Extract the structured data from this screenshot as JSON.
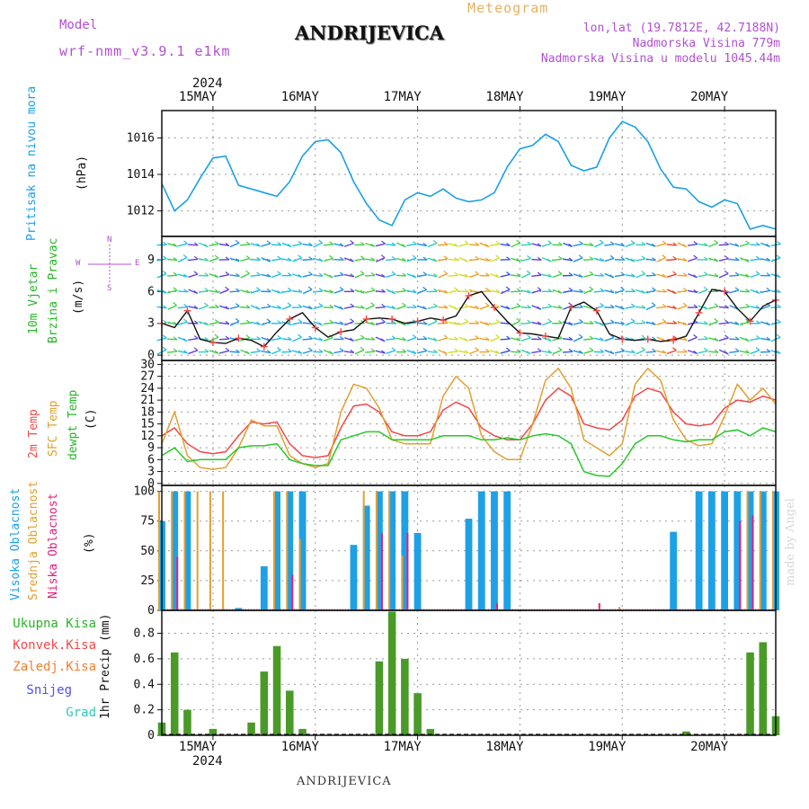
{
  "header": {
    "model_label": "Model",
    "model_name": "wrf-nmm_v3.9.1 e1km",
    "title": "ANDRIJEVICA",
    "meteogram": "Meteogram",
    "lonlat": "lon,lat (19.7812E, 42.7188N)",
    "elevation": "Nadmorska Visina 779m",
    "model_elevation": "Nadmorska Visina u modelu 1045.44m",
    "footer_title": "ANDRIJEVICA",
    "watermark": "made by Angel"
  },
  "colors": {
    "pressure": "#1aa0e6",
    "temp2m": "#f04848",
    "sfc": "#e0a030",
    "dewpoint": "#28c828",
    "high_cloud": "#1ea0e6",
    "mid_cloud": "#e0a030",
    "low_cloud": "#e02080",
    "precip": "#4a9a28",
    "model_text": "#b050d0",
    "meteogram_text": "#e8b060"
  },
  "x_axis": {
    "year": "2024",
    "days": [
      "15MAY",
      "16MAY",
      "17MAY",
      "18MAY",
      "19MAY",
      "20MAY"
    ]
  },
  "panels": {
    "pressure": {
      "label": "Pritisak na nivou mora",
      "unit": "(hPa)"
    },
    "wind": {
      "label1": "10m Vjetar",
      "label2": "Brzina i Pravac",
      "unit": "(m/s)",
      "compass_n": "N",
      "compass_e": "E",
      "compass_w": "W",
      "compass_s": "S"
    },
    "temp": {
      "label1": "2m Temp",
      "label2": "SFC Temp",
      "label3": "dewpt Temp",
      "unit": "(C)"
    },
    "cloud": {
      "label1": "Visoka Oblacnost",
      "label2": "Srednja Oblacnost",
      "label3": "Niska Oblacnost",
      "unit": "(%)"
    },
    "precip": {
      "label": "1hr Precip (mm)",
      "legend": [
        "Ukupna Kisa",
        "Konvek.Kisa",
        "Zaledj.Kisa",
        "Snijeg",
        "Grad"
      ],
      "legend_colors": [
        "#28b428",
        "#f04848",
        "#f08030",
        "#5050f0",
        "#30c8b8"
      ]
    }
  },
  "chart_data": [
    {
      "type": "line",
      "title": "Pritisak na nivou mora",
      "ylabel": "(hPa)",
      "ylim": [
        1010.6,
        1017.5
      ],
      "yticks": [
        1012,
        1014,
        1016
      ],
      "x_start_day": 14.5,
      "x_end_day": 20.5,
      "step_hours": 3,
      "series": [
        {
          "name": "Pritisak na nivou mora",
          "values": [
            1013.5,
            1012.0,
            1012.6,
            1013.8,
            1014.9,
            1015.0,
            1013.4,
            1013.2,
            1013.0,
            1012.8,
            1013.6,
            1015.0,
            1015.8,
            1015.9,
            1015.2,
            1013.6,
            1012.4,
            1011.5,
            1011.2,
            1012.6,
            1013.0,
            1012.8,
            1013.2,
            1012.7,
            1012.5,
            1012.6,
            1013.0,
            1014.4,
            1015.4,
            1015.6,
            1016.2,
            1015.8,
            1014.5,
            1014.2,
            1014.4,
            1016.0,
            1016.9,
            1016.6,
            1015.8,
            1014.3,
            1013.3,
            1013.2,
            1012.5,
            1012.2,
            1012.6,
            1012.4,
            1011.0,
            1011.2,
            1011.0
          ]
        }
      ]
    },
    {
      "type": "line",
      "title": "10m Vjetar Brzina i Pravac",
      "ylabel": "(m/s)",
      "ylim": [
        -0.5,
        11.2
      ],
      "yticks": [
        0,
        3,
        6,
        9
      ],
      "x_start_day": 14.5,
      "x_end_day": 20.5,
      "step_hours": 3,
      "series": [
        {
          "name": "10m Vjetar",
          "values": [
            3.0,
            2.6,
            4.2,
            1.5,
            1.2,
            1.1,
            1.6,
            1.4,
            0.8,
            2.2,
            3.4,
            4.0,
            2.6,
            1.7,
            2.2,
            2.4,
            3.4,
            3.5,
            3.4,
            3.0,
            3.2,
            3.5,
            3.3,
            3.7,
            5.6,
            6.0,
            4.5,
            3.2,
            2.1,
            2.0,
            1.8,
            1.6,
            4.5,
            5.0,
            4.2,
            2.0,
            1.5,
            1.4,
            1.5,
            1.3,
            1.4,
            1.8,
            4.0,
            6.2,
            6.0,
            4.4,
            3.2,
            4.6,
            5.2
          ]
        }
      ]
    },
    {
      "type": "line",
      "title": "2m Temp / SFC Temp / dewpt Temp",
      "ylabel": "(C)",
      "ylim": [
        -0.5,
        31
      ],
      "yticks": [
        0,
        3,
        6,
        9,
        12,
        15,
        18,
        21,
        24,
        27,
        30
      ],
      "x_start_day": 14.5,
      "x_end_day": 20.5,
      "step_hours": 3,
      "series": [
        {
          "name": "2m Temp",
          "values": [
            12,
            14,
            10,
            8,
            7.5,
            8,
            12,
            15.5,
            15,
            15.5,
            10,
            7,
            6.5,
            7,
            14,
            19.5,
            20,
            18,
            13,
            12,
            12,
            13,
            18.5,
            20.5,
            19,
            14,
            12,
            11,
            11,
            15,
            21,
            24,
            22,
            15,
            14,
            13.5,
            16,
            22,
            24,
            23,
            18,
            15,
            14.5,
            15,
            19,
            21,
            20.5,
            22,
            21
          ]
        },
        {
          "name": "SFC Temp",
          "values": [
            10,
            18,
            7,
            4,
            3.5,
            4,
            9,
            16,
            14.5,
            14.5,
            7,
            5,
            4,
            5,
            18,
            25,
            24,
            19,
            11,
            10,
            10,
            10,
            22,
            27,
            24,
            12,
            8,
            6,
            6,
            15,
            26,
            29,
            24,
            11,
            9,
            7,
            10,
            25,
            29,
            26,
            16,
            11,
            9.5,
            10,
            17,
            25,
            21,
            24,
            20
          ]
        },
        {
          "name": "dewpt Temp",
          "values": [
            7,
            9,
            5.5,
            6,
            6,
            6,
            9,
            9.5,
            9.5,
            10,
            6,
            5,
            4.5,
            4.5,
            11,
            12,
            13,
            13,
            11,
            11,
            11,
            11,
            12,
            12,
            12,
            11,
            11,
            11.5,
            11,
            12,
            12.5,
            12,
            10,
            3,
            2,
            1.8,
            5,
            10,
            12,
            12,
            11,
            10.5,
            11,
            11,
            13,
            13.5,
            12,
            14,
            13
          ]
        }
      ]
    },
    {
      "type": "bar",
      "title": "Visoka / Srednja / Niska Oblacnost",
      "ylabel": "(%)",
      "ylim": [
        0,
        105
      ],
      "yticks": [
        0,
        25,
        50,
        75,
        100
      ],
      "x_start_day": 14.5,
      "x_end_day": 20.5,
      "step_hours": 3,
      "series": [
        {
          "name": "Visoka Oblacnost",
          "values": [
            75,
            100,
            100,
            0,
            0,
            0,
            2,
            0,
            37,
            100,
            100,
            100,
            0,
            0,
            0,
            55,
            88,
            100,
            100,
            100,
            65,
            0,
            0,
            0,
            77,
            100,
            100,
            100,
            0,
            0,
            0,
            0,
            0,
            0,
            0,
            0,
            0,
            0,
            0,
            0,
            66,
            0,
            100,
            100,
            100,
            100,
            100,
            100,
            100
          ]
        },
        {
          "name": "Srednja Oblacnost",
          "values": [
            100,
            100,
            100,
            100,
            100,
            100,
            0,
            0,
            0,
            100,
            100,
            60,
            0,
            0,
            0,
            0,
            100,
            100,
            100,
            46,
            0,
            0,
            0,
            0,
            0,
            0,
            0,
            0,
            0,
            0,
            0,
            0,
            0,
            0,
            0,
            0,
            3,
            0,
            0,
            0,
            0,
            0,
            0,
            0,
            0,
            0,
            100,
            100,
            100
          ]
        },
        {
          "name": "Niska Oblacnost",
          "values": [
            0,
            45,
            0,
            0,
            0,
            0,
            0,
            0,
            0,
            0,
            30,
            0,
            0,
            0,
            0,
            0,
            0,
            65,
            0,
            65,
            0,
            0,
            0,
            0,
            0,
            0,
            6,
            0,
            0,
            0,
            0,
            0,
            0,
            0,
            6,
            0,
            0,
            0,
            0,
            0,
            0,
            0,
            0,
            0,
            0,
            75,
            80,
            0,
            0
          ]
        }
      ]
    },
    {
      "type": "bar",
      "title": "1hr Precip (mm)",
      "ylabel": "1hr Precip (mm)",
      "ylim": [
        0,
        0.98
      ],
      "yticks": [
        0,
        0.2,
        0.4,
        0.6,
        0.8
      ],
      "x_start_day": 14.5,
      "x_end_day": 20.5,
      "step_hours": 3,
      "series": [
        {
          "name": "Ukupna Kisa",
          "values": [
            0.1,
            0.65,
            0.2,
            0,
            0.05,
            0,
            0,
            0.1,
            0.5,
            0.7,
            0.35,
            0.05,
            0,
            0,
            0,
            0,
            0,
            0.58,
            0.97,
            0.6,
            0.33,
            0.05,
            0,
            0,
            0,
            0,
            0,
            0,
            0,
            0,
            0,
            0,
            0,
            0,
            0,
            0,
            0,
            0,
            0,
            0,
            0,
            0.03,
            0,
            0,
            0,
            0,
            0.65,
            0.73,
            0.15
          ]
        }
      ]
    }
  ]
}
